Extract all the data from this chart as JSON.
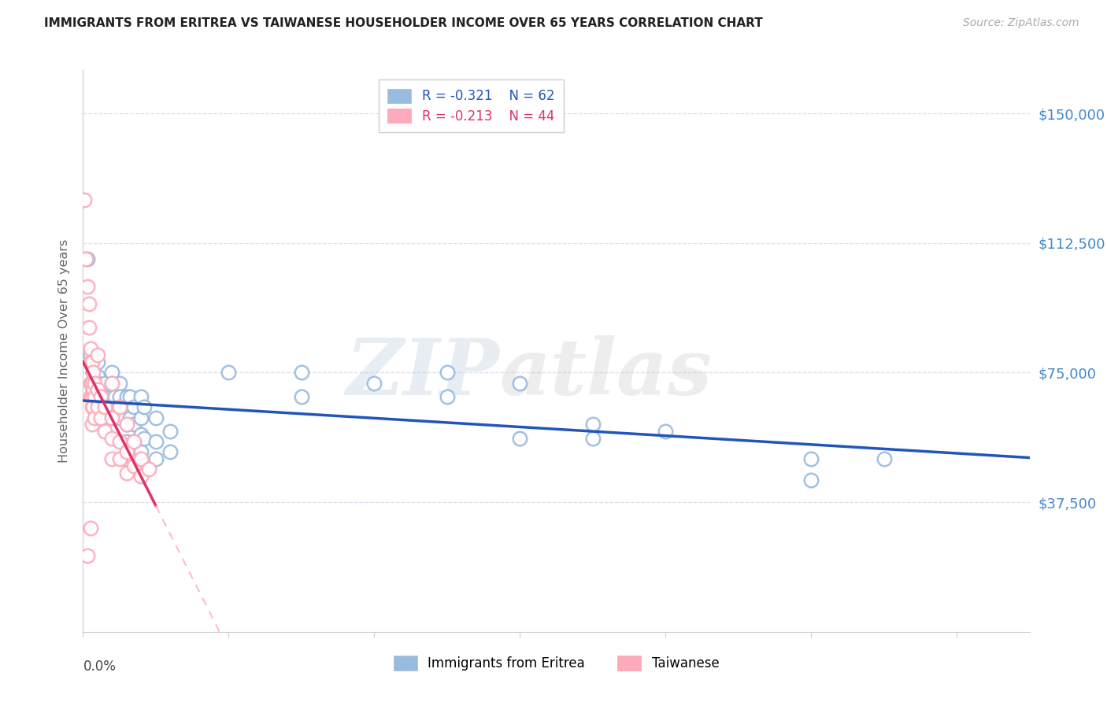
{
  "title": "IMMIGRANTS FROM ERITREA VS TAIWANESE HOUSEHOLDER INCOME OVER 65 YEARS CORRELATION CHART",
  "source": "Source: ZipAtlas.com",
  "ylabel": "Householder Income Over 65 years",
  "ytick_labels": [
    "$37,500",
    "$75,000",
    "$112,500",
    "$150,000"
  ],
  "ytick_values": [
    37500,
    75000,
    112500,
    150000
  ],
  "ylim_max": 162500,
  "ylim_min": 0,
  "xlim_min": 0.0,
  "xlim_max": 0.065,
  "legend_blue_r": "-0.321",
  "legend_blue_n": "62",
  "legend_pink_r": "-0.213",
  "legend_pink_n": "44",
  "legend_blue_label": "Immigrants from Eritrea",
  "legend_pink_label": "Taiwanese",
  "watermark_zip": "ZIP",
  "watermark_atlas": "atlas",
  "blue_scatter_color": "#99BBDD",
  "pink_scatter_color": "#FFAABB",
  "blue_line_color": "#2255BB",
  "pink_line_color": "#DD3366",
  "pink_dash_color": "#FFBBCC",
  "grid_color": "#DDDDEE",
  "spine_color": "#CCCCCC",
  "right_label_color": "#4488CC",
  "title_color": "#222222",
  "source_color": "#AAAAAA",
  "ylabel_color": "#666666",
  "scatter_blue": [
    [
      0.0003,
      108000
    ],
    [
      0.0005,
      80000
    ],
    [
      0.0007,
      75000
    ],
    [
      0.0007,
      70000
    ],
    [
      0.001,
      78000
    ],
    [
      0.001,
      74000
    ],
    [
      0.001,
      72000
    ],
    [
      0.001,
      68000
    ],
    [
      0.001,
      65000
    ],
    [
      0.0012,
      68000
    ],
    [
      0.0012,
      65000
    ],
    [
      0.0012,
      62000
    ],
    [
      0.0015,
      72000
    ],
    [
      0.0015,
      68000
    ],
    [
      0.0015,
      65000
    ],
    [
      0.002,
      75000
    ],
    [
      0.002,
      72000
    ],
    [
      0.002,
      68000
    ],
    [
      0.002,
      65000
    ],
    [
      0.002,
      62000
    ],
    [
      0.0022,
      68000
    ],
    [
      0.0022,
      64000
    ],
    [
      0.0025,
      72000
    ],
    [
      0.0025,
      68000
    ],
    [
      0.0025,
      65000
    ],
    [
      0.0025,
      62000
    ],
    [
      0.003,
      68000
    ],
    [
      0.003,
      65000
    ],
    [
      0.003,
      60000
    ],
    [
      0.003,
      55000
    ],
    [
      0.003,
      50000
    ],
    [
      0.0032,
      68000
    ],
    [
      0.0032,
      62000
    ],
    [
      0.0035,
      65000
    ],
    [
      0.0035,
      60000
    ],
    [
      0.0035,
      55000
    ],
    [
      0.0035,
      50000
    ],
    [
      0.004,
      68000
    ],
    [
      0.004,
      62000
    ],
    [
      0.004,
      57000
    ],
    [
      0.004,
      52000
    ],
    [
      0.0042,
      65000
    ],
    [
      0.0042,
      56000
    ],
    [
      0.005,
      62000
    ],
    [
      0.005,
      55000
    ],
    [
      0.005,
      50000
    ],
    [
      0.006,
      58000
    ],
    [
      0.006,
      52000
    ],
    [
      0.01,
      75000
    ],
    [
      0.015,
      75000
    ],
    [
      0.015,
      68000
    ],
    [
      0.02,
      72000
    ],
    [
      0.025,
      75000
    ],
    [
      0.025,
      68000
    ],
    [
      0.03,
      72000
    ],
    [
      0.03,
      56000
    ],
    [
      0.035,
      60000
    ],
    [
      0.035,
      56000
    ],
    [
      0.04,
      58000
    ],
    [
      0.05,
      50000
    ],
    [
      0.05,
      44000
    ],
    [
      0.055,
      50000
    ]
  ],
  "scatter_pink": [
    [
      0.0001,
      125000
    ],
    [
      0.0002,
      108000
    ],
    [
      0.0003,
      100000
    ],
    [
      0.0004,
      95000
    ],
    [
      0.0004,
      88000
    ],
    [
      0.0005,
      82000
    ],
    [
      0.0005,
      78000
    ],
    [
      0.0005,
      72000
    ],
    [
      0.0005,
      68000
    ],
    [
      0.0006,
      78000
    ],
    [
      0.0006,
      72000
    ],
    [
      0.0006,
      68000
    ],
    [
      0.0006,
      65000
    ],
    [
      0.0006,
      60000
    ],
    [
      0.0007,
      75000
    ],
    [
      0.0007,
      70000
    ],
    [
      0.0007,
      65000
    ],
    [
      0.0008,
      72000
    ],
    [
      0.0008,
      68000
    ],
    [
      0.0008,
      62000
    ],
    [
      0.001,
      80000
    ],
    [
      0.001,
      70000
    ],
    [
      0.001,
      65000
    ],
    [
      0.0012,
      68000
    ],
    [
      0.0012,
      62000
    ],
    [
      0.0015,
      65000
    ],
    [
      0.0015,
      58000
    ],
    [
      0.002,
      72000
    ],
    [
      0.002,
      62000
    ],
    [
      0.002,
      56000
    ],
    [
      0.002,
      50000
    ],
    [
      0.0025,
      65000
    ],
    [
      0.0025,
      55000
    ],
    [
      0.0025,
      50000
    ],
    [
      0.003,
      60000
    ],
    [
      0.003,
      52000
    ],
    [
      0.003,
      46000
    ],
    [
      0.0035,
      55000
    ],
    [
      0.0035,
      48000
    ],
    [
      0.004,
      50000
    ],
    [
      0.004,
      45000
    ],
    [
      0.0045,
      47000
    ],
    [
      0.0005,
      30000
    ],
    [
      0.0003,
      22000
    ]
  ]
}
